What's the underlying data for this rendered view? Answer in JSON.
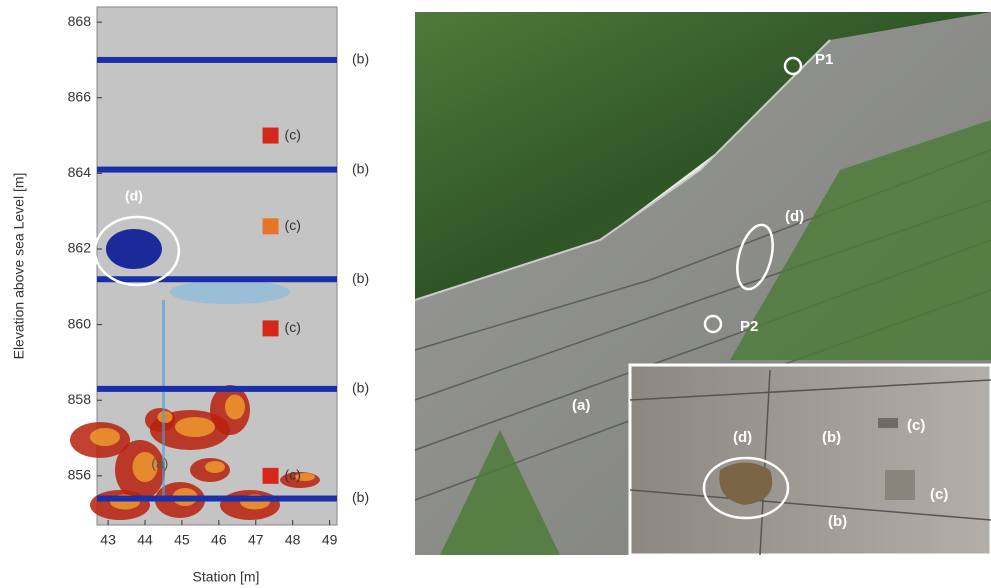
{
  "chart_data": {
    "type": "heatmap",
    "xlabel": "Station [m]",
    "ylabel": "Elevation above sea Level [m]",
    "xlim": [
      42.7,
      49.2
    ],
    "ylim": [
      854.7,
      868.4
    ],
    "xticks": [
      43,
      44,
      45,
      46,
      47,
      48,
      49
    ],
    "yticks": [
      856,
      858,
      860,
      862,
      864,
      866,
      868
    ],
    "joints": {
      "label": "(b)",
      "elevations": [
        867.0,
        864.1,
        861.2,
        858.3,
        855.4
      ]
    },
    "spalls": {
      "label": "(c)",
      "x": [
        47.4,
        47.4,
        47.4,
        47.4
      ],
      "y": [
        865.0,
        862.6,
        859.9,
        856.0
      ]
    },
    "cavity": {
      "label": "(d)",
      "x": 43.7,
      "y": 862.0
    },
    "zone": {
      "label": "(a)",
      "x": 44.4,
      "y": 856.3
    }
  },
  "photo": {
    "labels": {
      "p1": "P1",
      "p2": "P2",
      "a": "(a)",
      "d": "(d)"
    },
    "inset": {
      "d": "(d)",
      "b": "(b)",
      "c": "(c)"
    }
  }
}
